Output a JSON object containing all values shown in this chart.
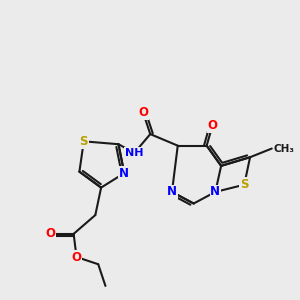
{
  "background_color": "#ebebeb",
  "atom_colors": {
    "O": "#ff0000",
    "N": "#0000ff",
    "S": "#b8a000",
    "C": "#1a1a1a"
  },
  "lw": 1.5,
  "fs": 8.5
}
